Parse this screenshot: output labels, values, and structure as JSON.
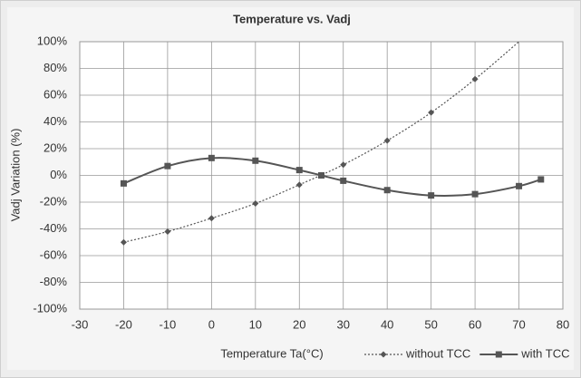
{
  "chart_data": {
    "type": "line",
    "title": "Temperature vs. Vadj",
    "x_label": "Temperature Ta(°C)",
    "y_label": "Vadj Variation (%)",
    "xlim": [
      -30,
      80
    ],
    "xticks": [
      -30,
      -20,
      -10,
      0,
      10,
      20,
      30,
      40,
      50,
      60,
      70,
      80
    ],
    "ylim": [
      -100,
      100
    ],
    "yticks": [
      {
        "value": -100,
        "label": "-100%"
      },
      {
        "value": -80,
        "label": "-80%"
      },
      {
        "value": -60,
        "label": "-60%"
      },
      {
        "value": -40,
        "label": "-40%"
      },
      {
        "value": -20,
        "label": "-20%"
      },
      {
        "value": 0,
        "label": "0%"
      },
      {
        "value": 20,
        "label": "20%"
      },
      {
        "value": 40,
        "label": "40%"
      },
      {
        "value": 60,
        "label": "60%"
      },
      {
        "value": 80,
        "label": "80%"
      },
      {
        "value": 100,
        "label": "100%"
      }
    ],
    "grid": true,
    "legend": "bottom-right",
    "series": [
      {
        "name": "without TCC",
        "color": "#555555",
        "style": "dotted",
        "marker": "diamond",
        "x": [
          -20,
          -10,
          0,
          10,
          20,
          30,
          40,
          50,
          60,
          70
        ],
        "values": [
          -50,
          -42,
          -32,
          -21,
          -7,
          8,
          26,
          47,
          72,
          100
        ]
      },
      {
        "name": "with TCC",
        "color": "#555555",
        "style": "solid",
        "marker": "square",
        "x": [
          -20,
          -10,
          0,
          10,
          20,
          25,
          30,
          40,
          50,
          60,
          70,
          75
        ],
        "values": [
          -6,
          7,
          13,
          11,
          4,
          0,
          -4,
          -11,
          -15,
          -14,
          -8,
          -3
        ]
      }
    ]
  }
}
